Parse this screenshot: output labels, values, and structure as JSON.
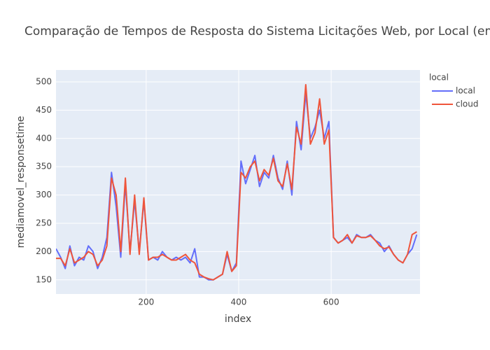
{
  "chart_data": {
    "type": "line",
    "title": "Comparação de Tempos de Resposta do Sistema Licitações Web, por Local (em",
    "x_label": "index",
    "y_label": "mediamovel_responsetime",
    "legend_title": "local",
    "legend_position": "right",
    "grid": true,
    "xlim": [
      5,
      792
    ],
    "ylim": [
      125,
      521
    ],
    "xticks": [
      200,
      400,
      600
    ],
    "yticks": [
      150,
      200,
      250,
      300,
      350,
      400,
      450,
      500
    ],
    "x": [
      5,
      15,
      25,
      35,
      45,
      55,
      65,
      75,
      85,
      95,
      105,
      115,
      125,
      135,
      145,
      155,
      165,
      175,
      185,
      195,
      205,
      215,
      225,
      235,
      245,
      255,
      265,
      275,
      285,
      295,
      305,
      315,
      325,
      335,
      345,
      355,
      365,
      375,
      385,
      395,
      405,
      415,
      425,
      435,
      445,
      455,
      465,
      475,
      485,
      495,
      505,
      515,
      525,
      535,
      545,
      555,
      565,
      575,
      585,
      595,
      605,
      615,
      625,
      635,
      645,
      655,
      665,
      675,
      685,
      695,
      705,
      715,
      725,
      735,
      745,
      755,
      765,
      775,
      785
    ],
    "series": [
      {
        "name": "local",
        "color": "#636efa",
        "values": [
          205,
          190,
          170,
          210,
          175,
          190,
          185,
          210,
          200,
          170,
          190,
          225,
          340,
          280,
          190,
          320,
          200,
          290,
          200,
          290,
          185,
          190,
          185,
          200,
          190,
          185,
          190,
          185,
          190,
          180,
          205,
          155,
          155,
          150,
          150,
          155,
          160,
          195,
          165,
          180,
          360,
          320,
          345,
          370,
          315,
          340,
          330,
          370,
          330,
          310,
          360,
          300,
          430,
          380,
          480,
          400,
          420,
          450,
          400,
          430,
          225,
          215,
          220,
          225,
          215,
          230,
          225,
          225,
          230,
          220,
          215,
          200,
          210,
          195,
          185,
          180,
          195,
          205,
          230
        ]
      },
      {
        "name": "cloud",
        "color": "#ef553b",
        "values": [
          188,
          188,
          175,
          205,
          180,
          185,
          190,
          200,
          195,
          175,
          185,
          210,
          330,
          300,
          200,
          330,
          195,
          300,
          195,
          295,
          185,
          190,
          190,
          195,
          190,
          185,
          185,
          190,
          195,
          185,
          180,
          160,
          155,
          152,
          150,
          155,
          160,
          200,
          165,
          175,
          340,
          330,
          350,
          360,
          325,
          345,
          335,
          365,
          325,
          315,
          355,
          310,
          420,
          390,
          495,
          390,
          410,
          470,
          390,
          415,
          225,
          215,
          220,
          230,
          215,
          228,
          225,
          225,
          228,
          220,
          210,
          205,
          208,
          195,
          185,
          180,
          195,
          230,
          235
        ]
      }
    ]
  }
}
